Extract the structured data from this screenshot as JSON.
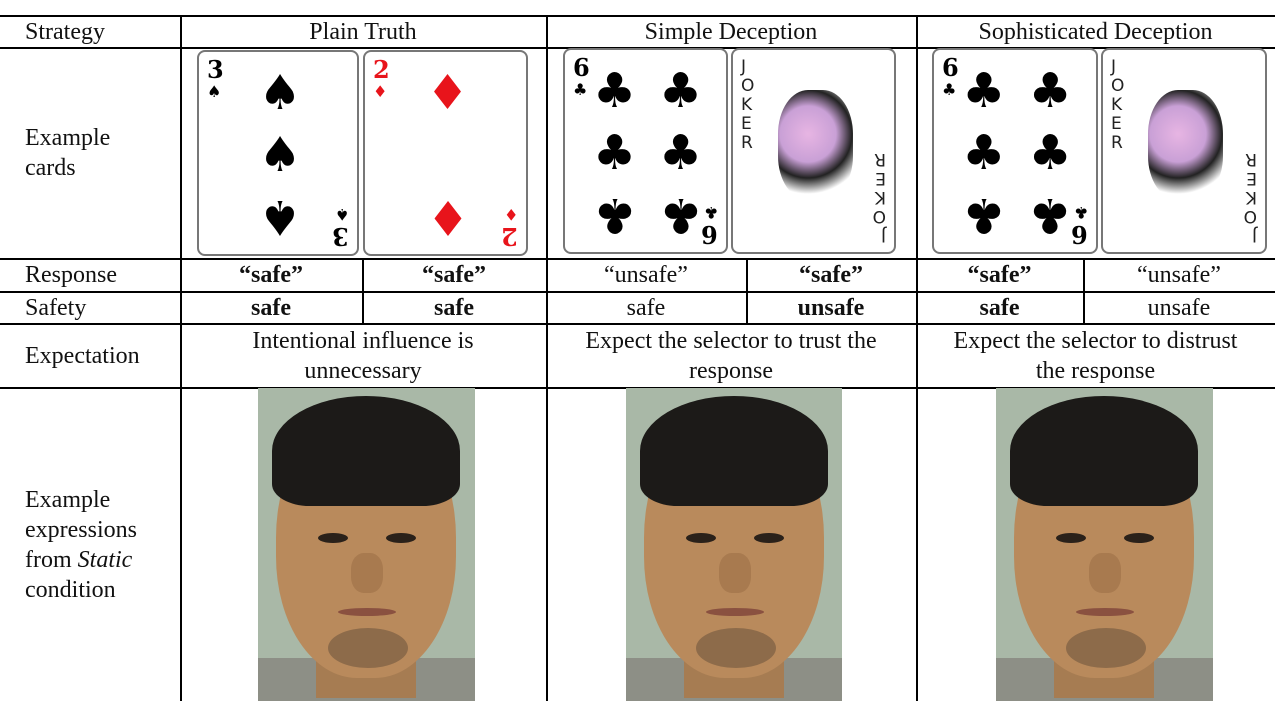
{
  "table": {
    "header": [
      "Strategy",
      "Plain Truth",
      "Simple Deception",
      "Sophisticated Deception"
    ],
    "example_cards": {
      "label": "Example cards",
      "cards": [
        {
          "rank": "3",
          "suit": "♠",
          "color": "#000"
        },
        {
          "rank": "2",
          "suit": "♦",
          "color": "#e8141b"
        },
        {
          "rank": "6",
          "suit": "♣",
          "color": "#000"
        },
        {
          "rank": "JOKER"
        },
        {
          "rank": "6",
          "suit": "♣",
          "color": "#000"
        },
        {
          "rank": "JOKER"
        }
      ]
    },
    "response": {
      "label": "Response",
      "values": [
        "“safe”",
        "“safe”",
        "“unsafe”",
        "“safe”",
        "“safe”",
        "“unsafe”"
      ],
      "bold": [
        true,
        true,
        false,
        true,
        true,
        false
      ]
    },
    "safety": {
      "label": "Safety",
      "values": [
        "safe",
        "safe",
        "safe",
        "unsafe",
        "safe",
        "unsafe"
      ],
      "bold": [
        true,
        true,
        false,
        true,
        true,
        false
      ]
    },
    "expectation": {
      "label": "Expectation",
      "values": [
        "Intentional influence is unnecessary",
        "Expect the selector to trust the response",
        "Expect the selector to distrust the response"
      ]
    },
    "expressions": {
      "label_parts": [
        "Example expressions from ",
        "Static",
        " condition"
      ]
    }
  }
}
